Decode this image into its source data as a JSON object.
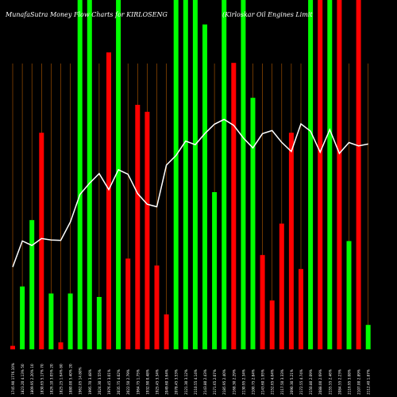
{
  "header": {
    "left_text": "MunafaSutra  Money Flow Charts for KIRLOSENG",
    "right_text": "(Kirloskar Oil Engines Limit"
  },
  "chart_data": {
    "type": "bar",
    "title": "MunafaSutra  Money Flow Charts for KIRLOSENG",
    "subtitle": "(Kirloskar Oil Engines Limit",
    "xlabel": "",
    "ylabel": "",
    "grid": "vertical lines",
    "legend": "none",
    "colors": {
      "background": "#000000",
      "up": "#00ff00",
      "down": "#ff0000",
      "grid": "#b45a00",
      "price_line": "#ffffff",
      "text": "#ffffff"
    },
    "categories": [
      "1745.90 1776.10%",
      "1823.20 4.13% 50",
      "1809.95 2.20% 10",
      "1830.65 5.17% 70",
      "1826.10 3.05% 20",
      "1825.25 1.64% 80",
      "1880.00 5.40% 20",
      "1962.05 14.80%",
      "1995.70 3.48%",
      "2024.30 3.55%",
      "1976.45 3.01%",
      "2035.75 4.02%",
      "2022.50 2.79%",
      "1964.75 1.75%",
      "1932.90 0.48%",
      "1925.45 3.34%",
      "2049.60 3.64%",
      "2078.45 3.53%",
      "2121.30 3.12%",
      "2110.55 4.14%",
      "2143.80 2.43%",
      "2171.65 2.07%",
      "2185.95 2.40%",
      "2168.30 2.29%",
      "2130.95 2.34%",
      "2100.75 2.84%",
      "2143.60 1.95%",
      "2152.65 4.04%",
      "2117.50 3.33%",
      "2090.30 5.21%",
      "2172.55 4.74%",
      "2150.80 2.09%",
      "2088.00 2.69%",
      "2155.55 2.46%",
      "2084.55 2.23%",
      "2116.95 3.08%",
      "2107.00 2.89%",
      "2112.40 1.87%"
    ],
    "series": [
      {
        "chart_role": "money flow volume bars (relative heights, 0-100)",
        "values": [
          1,
          18,
          37,
          62,
          16,
          2,
          16,
          100,
          100,
          15,
          85,
          100,
          26,
          70,
          68,
          24,
          10,
          100,
          100,
          100,
          93,
          45,
          100,
          82,
          100,
          72,
          27,
          14,
          36,
          62,
          23,
          100,
          100,
          100,
          100,
          31,
          100,
          7
        ],
        "directions": [
          "down",
          "up",
          "up",
          "down",
          "up",
          "down",
          "up",
          "up",
          "up",
          "up",
          "down",
          "up",
          "down",
          "down",
          "down",
          "down",
          "down",
          "up",
          "up",
          "up",
          "up",
          "up",
          "up",
          "down",
          "up",
          "up",
          "down",
          "down",
          "down",
          "down",
          "down",
          "up",
          "down",
          "up",
          "down",
          "up",
          "down",
          "up"
        ]
      },
      {
        "chart_role": "closing price line",
        "values": [
          1745.9,
          1823.2,
          1809.95,
          1830.65,
          1826.1,
          1825.25,
          1880.0,
          1962.05,
          1995.7,
          2024.3,
          1976.45,
          2035.75,
          2022.5,
          1964.75,
          1932.9,
          1925.45,
          2049.6,
          2078.45,
          2121.3,
          2110.55,
          2143.8,
          2171.65,
          2185.95,
          2168.3,
          2130.95,
          2100.75,
          2143.6,
          2152.65,
          2117.5,
          2090.3,
          2172.55,
          2150.8,
          2088.0,
          2155.55,
          2084.55,
          2116.95,
          2107.0,
          2112.4
        ]
      }
    ],
    "ylim_volume": [
      0,
      100
    ],
    "ylim_price": [
      1500,
      2400
    ]
  }
}
